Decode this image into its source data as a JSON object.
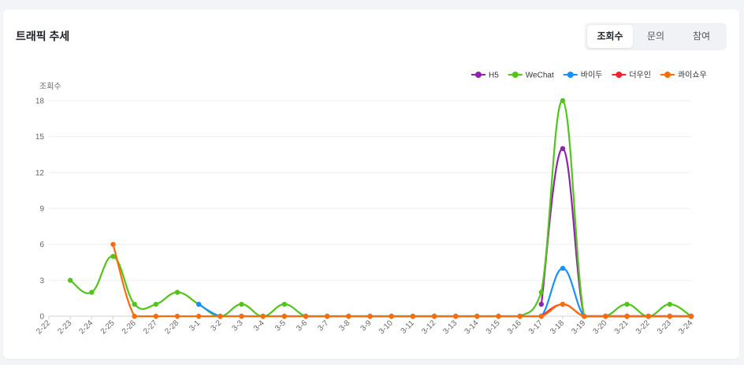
{
  "header": {
    "title": "트래픽 추세"
  },
  "tabs": [
    {
      "label": "조회수",
      "active": true
    },
    {
      "label": "문의",
      "active": false
    },
    {
      "label": "참여",
      "active": false
    }
  ],
  "chart_data": {
    "type": "line",
    "ylabel": "조회수",
    "ylim": [
      0,
      18
    ],
    "yticks": [
      0,
      3,
      6,
      9,
      12,
      15,
      18
    ],
    "grid": true,
    "legend_position": "top-right",
    "categories": [
      "2-22",
      "2-23",
      "2-24",
      "2-25",
      "2-26",
      "2-27",
      "2-28",
      "3-1",
      "3-2",
      "3-3",
      "3-4",
      "3-5",
      "3-6",
      "3-7",
      "3-8",
      "3-9",
      "3-10",
      "3-11",
      "3-12",
      "3-13",
      "3-14",
      "3-15",
      "3-16",
      "3-17",
      "3-18",
      "3-19",
      "3-20",
      "3-21",
      "3-22",
      "3-23",
      "3-24"
    ],
    "series": [
      {
        "name": "H5",
        "color": "#8e24aa",
        "values": [
          null,
          null,
          null,
          null,
          null,
          null,
          null,
          null,
          null,
          null,
          null,
          null,
          null,
          null,
          null,
          null,
          null,
          null,
          null,
          null,
          null,
          null,
          null,
          1,
          14,
          0,
          0,
          0,
          0,
          0,
          0
        ]
      },
      {
        "name": "WeChat",
        "color": "#52c41a",
        "values": [
          null,
          3,
          2,
          5,
          1,
          1,
          2,
          1,
          0,
          1,
          0,
          1,
          0,
          0,
          0,
          0,
          0,
          0,
          0,
          0,
          0,
          0,
          0,
          2,
          18,
          0,
          0,
          1,
          0,
          1,
          0
        ]
      },
      {
        "name": "바이두",
        "color": "#1890ff",
        "values": [
          null,
          null,
          null,
          null,
          null,
          null,
          null,
          1,
          0,
          0,
          0,
          0,
          0,
          0,
          0,
          0,
          0,
          0,
          0,
          0,
          0,
          0,
          0,
          0,
          4,
          0,
          0,
          0,
          0,
          0,
          0
        ]
      },
      {
        "name": "더우인",
        "color": "#f5222d",
        "values": [
          null,
          null,
          null,
          null,
          null,
          null,
          null,
          null,
          null,
          null,
          null,
          null,
          null,
          null,
          null,
          null,
          null,
          null,
          null,
          null,
          null,
          null,
          null,
          0,
          1,
          0,
          0,
          0,
          0,
          0,
          0
        ]
      },
      {
        "name": "콰이쇼우",
        "color": "#fa6c0a",
        "values": [
          null,
          null,
          null,
          6,
          0,
          0,
          0,
          0,
          0,
          0,
          0,
          0,
          0,
          0,
          0,
          0,
          0,
          0,
          0,
          0,
          0,
          0,
          0,
          0,
          1,
          0,
          0,
          0,
          0,
          0,
          0
        ]
      }
    ]
  }
}
